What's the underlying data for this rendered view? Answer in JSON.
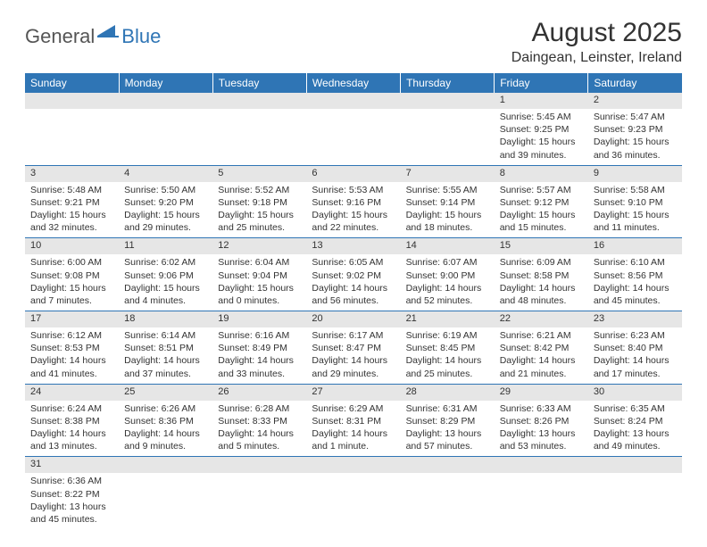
{
  "logo": {
    "part1": "General",
    "part2": "Blue"
  },
  "title": "August 2025",
  "location": "Daingean, Leinster, Ireland",
  "colors": {
    "accent": "#2f75b5",
    "header_bg": "#e6e6e6"
  },
  "weekdays": [
    "Sunday",
    "Monday",
    "Tuesday",
    "Wednesday",
    "Thursday",
    "Friday",
    "Saturday"
  ],
  "weeks": [
    [
      null,
      null,
      null,
      null,
      null,
      {
        "n": "1",
        "sr": "5:45 AM",
        "ss": "9:25 PM",
        "dl": "15 hours and 39 minutes."
      },
      {
        "n": "2",
        "sr": "5:47 AM",
        "ss": "9:23 PM",
        "dl": "15 hours and 36 minutes."
      }
    ],
    [
      {
        "n": "3",
        "sr": "5:48 AM",
        "ss": "9:21 PM",
        "dl": "15 hours and 32 minutes."
      },
      {
        "n": "4",
        "sr": "5:50 AM",
        "ss": "9:20 PM",
        "dl": "15 hours and 29 minutes."
      },
      {
        "n": "5",
        "sr": "5:52 AM",
        "ss": "9:18 PM",
        "dl": "15 hours and 25 minutes."
      },
      {
        "n": "6",
        "sr": "5:53 AM",
        "ss": "9:16 PM",
        "dl": "15 hours and 22 minutes."
      },
      {
        "n": "7",
        "sr": "5:55 AM",
        "ss": "9:14 PM",
        "dl": "15 hours and 18 minutes."
      },
      {
        "n": "8",
        "sr": "5:57 AM",
        "ss": "9:12 PM",
        "dl": "15 hours and 15 minutes."
      },
      {
        "n": "9",
        "sr": "5:58 AM",
        "ss": "9:10 PM",
        "dl": "15 hours and 11 minutes."
      }
    ],
    [
      {
        "n": "10",
        "sr": "6:00 AM",
        "ss": "9:08 PM",
        "dl": "15 hours and 7 minutes."
      },
      {
        "n": "11",
        "sr": "6:02 AM",
        "ss": "9:06 PM",
        "dl": "15 hours and 4 minutes."
      },
      {
        "n": "12",
        "sr": "6:04 AM",
        "ss": "9:04 PM",
        "dl": "15 hours and 0 minutes."
      },
      {
        "n": "13",
        "sr": "6:05 AM",
        "ss": "9:02 PM",
        "dl": "14 hours and 56 minutes."
      },
      {
        "n": "14",
        "sr": "6:07 AM",
        "ss": "9:00 PM",
        "dl": "14 hours and 52 minutes."
      },
      {
        "n": "15",
        "sr": "6:09 AM",
        "ss": "8:58 PM",
        "dl": "14 hours and 48 minutes."
      },
      {
        "n": "16",
        "sr": "6:10 AM",
        "ss": "8:56 PM",
        "dl": "14 hours and 45 minutes."
      }
    ],
    [
      {
        "n": "17",
        "sr": "6:12 AM",
        "ss": "8:53 PM",
        "dl": "14 hours and 41 minutes."
      },
      {
        "n": "18",
        "sr": "6:14 AM",
        "ss": "8:51 PM",
        "dl": "14 hours and 37 minutes."
      },
      {
        "n": "19",
        "sr": "6:16 AM",
        "ss": "8:49 PM",
        "dl": "14 hours and 33 minutes."
      },
      {
        "n": "20",
        "sr": "6:17 AM",
        "ss": "8:47 PM",
        "dl": "14 hours and 29 minutes."
      },
      {
        "n": "21",
        "sr": "6:19 AM",
        "ss": "8:45 PM",
        "dl": "14 hours and 25 minutes."
      },
      {
        "n": "22",
        "sr": "6:21 AM",
        "ss": "8:42 PM",
        "dl": "14 hours and 21 minutes."
      },
      {
        "n": "23",
        "sr": "6:23 AM",
        "ss": "8:40 PM",
        "dl": "14 hours and 17 minutes."
      }
    ],
    [
      {
        "n": "24",
        "sr": "6:24 AM",
        "ss": "8:38 PM",
        "dl": "14 hours and 13 minutes."
      },
      {
        "n": "25",
        "sr": "6:26 AM",
        "ss": "8:36 PM",
        "dl": "14 hours and 9 minutes."
      },
      {
        "n": "26",
        "sr": "6:28 AM",
        "ss": "8:33 PM",
        "dl": "14 hours and 5 minutes."
      },
      {
        "n": "27",
        "sr": "6:29 AM",
        "ss": "8:31 PM",
        "dl": "14 hours and 1 minute."
      },
      {
        "n": "28",
        "sr": "6:31 AM",
        "ss": "8:29 PM",
        "dl": "13 hours and 57 minutes."
      },
      {
        "n": "29",
        "sr": "6:33 AM",
        "ss": "8:26 PM",
        "dl": "13 hours and 53 minutes."
      },
      {
        "n": "30",
        "sr": "6:35 AM",
        "ss": "8:24 PM",
        "dl": "13 hours and 49 minutes."
      }
    ],
    [
      {
        "n": "31",
        "sr": "6:36 AM",
        "ss": "8:22 PM",
        "dl": "13 hours and 45 minutes."
      },
      null,
      null,
      null,
      null,
      null,
      null
    ]
  ],
  "labels": {
    "sunrise": "Sunrise: ",
    "sunset": "Sunset: ",
    "daylight": "Daylight: "
  }
}
